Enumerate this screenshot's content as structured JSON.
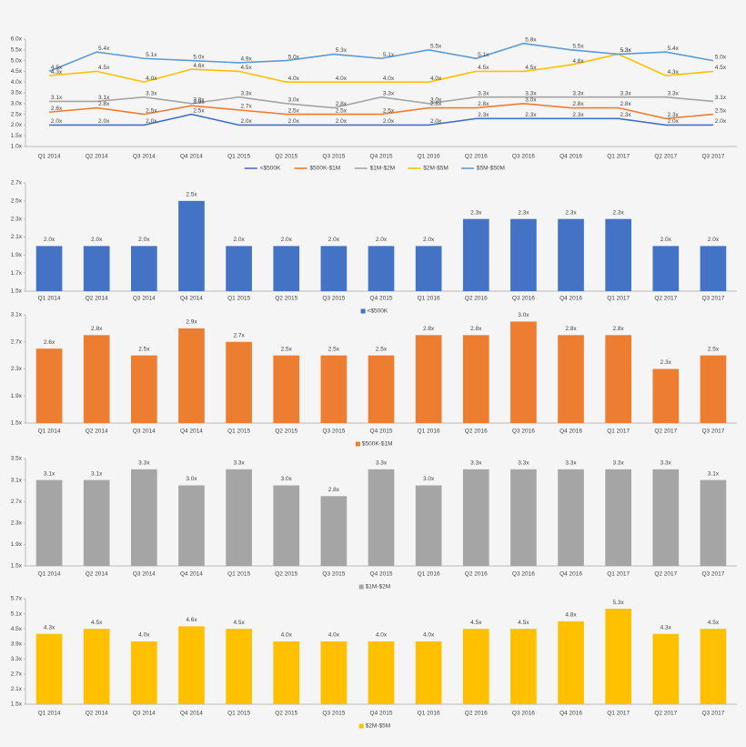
{
  "chart_data": [
    {
      "type": "line",
      "categories": [
        "Q1 2014",
        "Q2 2014",
        "Q3 2014",
        "Q4 2014",
        "Q1 2015",
        "Q2 2015",
        "Q3 2015",
        "Q4 2015",
        "Q1 2016",
        "Q2 2016",
        "Q3 2016",
        "Q4 2016",
        "Q1 2017",
        "Q2 2017",
        "Q3 2017"
      ],
      "ylim": [
        1.0,
        6.0
      ],
      "yticks": [
        {
          "value": 1.0,
          "label": "1.0x"
        },
        {
          "value": 1.5,
          "label": "1.5x"
        },
        {
          "value": 2.0,
          "label": "2.0x"
        },
        {
          "value": 2.5,
          "label": "2.5x"
        },
        {
          "value": 3.0,
          "label": "3.0x"
        },
        {
          "value": 3.5,
          "label": "3.5x"
        },
        {
          "value": 4.0,
          "label": "4.0x"
        },
        {
          "value": 4.5,
          "label": "4.5x"
        },
        {
          "value": 5.0,
          "label": "5.0x"
        },
        {
          "value": 5.5,
          "label": "5.5x"
        },
        {
          "value": 6.0,
          "label": "6.0x"
        }
      ],
      "grid": false,
      "legend": "bottom",
      "series": [
        {
          "name": "<$500K",
          "color": "#4472c4",
          "values": [
            2.0,
            2.0,
            2.0,
            2.5,
            2.0,
            2.0,
            2.0,
            2.0,
            2.0,
            2.3,
            2.3,
            2.3,
            2.3,
            2.0,
            2.0
          ],
          "value_labels": [
            "2.0x",
            "2.0x",
            "2.0x",
            "2.5x",
            "2.0x",
            "2.0x",
            "2.0x",
            "2.0x",
            "2.0x",
            "2.3x",
            "2.3x",
            "2.3x",
            "2.3x",
            "2.0x",
            "2.0x"
          ]
        },
        {
          "name": "$500K-$1M",
          "color": "#ed7d31",
          "values": [
            2.6,
            2.8,
            2.5,
            2.9,
            2.7,
            2.5,
            2.5,
            2.5,
            2.8,
            2.8,
            3.0,
            2.8,
            2.8,
            2.3,
            2.5
          ],
          "value_labels": [
            "2.6x",
            "2.8x",
            "2.5x",
            "2.9x",
            "2.7x",
            "2.5x",
            "2.5x",
            "2.5x",
            "2.8x",
            "2.8x",
            "3.0x",
            "2.8x",
            "2.8x",
            "2.3x",
            "2.5x"
          ]
        },
        {
          "name": "$1M-$2M",
          "color": "#a5a5a5",
          "values": [
            3.1,
            3.1,
            3.3,
            3.0,
            3.3,
            3.0,
            2.8,
            3.3,
            3.0,
            3.3,
            3.3,
            3.3,
            3.3,
            3.3,
            3.1
          ],
          "value_labels": [
            "3.1x",
            "3.1x",
            "3.3x",
            "3.0x",
            "3.3x",
            "3.0x",
            "2.8x",
            "3.3x",
            "3.0x",
            "3.3x",
            "3.3x",
            "3.3x",
            "3.3x",
            "3.3x",
            "3.1x"
          ]
        },
        {
          "name": "$2M-$5M",
          "color": "#ffc000",
          "values": [
            4.3,
            4.5,
            4.0,
            4.6,
            4.5,
            4.0,
            4.0,
            4.0,
            4.0,
            4.5,
            4.5,
            4.8,
            5.3,
            4.3,
            4.5
          ],
          "value_labels": [
            "4.3x",
            "4.5x",
            "4.0x",
            "4.6x",
            "4.5x",
            "4.0x",
            "4.0x",
            "4.0x",
            "4.0x",
            "4.5x",
            "4.5x",
            "4.8x",
            "5.3x",
            "4.3x",
            "4.5x"
          ]
        },
        {
          "name": "$5M-$50M",
          "color": "#5b9bd5",
          "values": [
            4.5,
            5.4,
            5.1,
            5.0,
            4.9,
            5.0,
            5.3,
            5.1,
            5.5,
            5.1,
            5.8,
            5.5,
            5.3,
            5.4,
            5.0
          ],
          "value_labels": [
            "4.5x",
            "5.4x",
            "5.1x",
            "5.0x",
            "4.9x",
            "5.0x",
            "5.3x",
            "5.1x",
            "5.5x",
            "5.1x",
            "5.8x",
            "5.5x",
            "5.3x",
            "5.4x",
            "5.0x"
          ]
        }
      ]
    },
    {
      "type": "bar",
      "categories": [
        "Q1 2014",
        "Q2 2014",
        "Q3 2014",
        "Q4 2014",
        "Q1 2015",
        "Q2 2015",
        "Q3 2015",
        "Q4 2015",
        "Q1 2016",
        "Q2 2016",
        "Q3 2016",
        "Q4 2016",
        "Q1 2017",
        "Q2 2017",
        "Q3 2017"
      ],
      "ylim": [
        1.5,
        2.7
      ],
      "yticks": [
        {
          "value": 1.5,
          "label": "1.5x"
        },
        {
          "value": 1.7,
          "label": "1.7x"
        },
        {
          "value": 1.9,
          "label": "1.9x"
        },
        {
          "value": 2.1,
          "label": "2.1x"
        },
        {
          "value": 2.3,
          "label": "2.3x"
        },
        {
          "value": 2.5,
          "label": "2.5x"
        },
        {
          "value": 2.7,
          "label": "2.7x"
        }
      ],
      "grid": false,
      "legend": "bottom",
      "series": [
        {
          "name": "<$500K",
          "color": "#4472c4",
          "values": [
            2.0,
            2.0,
            2.0,
            2.5,
            2.0,
            2.0,
            2.0,
            2.0,
            2.0,
            2.3,
            2.3,
            2.3,
            2.3,
            2.0,
            2.0
          ],
          "value_labels": [
            "2.0x",
            "2.0x",
            "2.0x",
            "2.5x",
            "2.0x",
            "2.0x",
            "2.0x",
            "2.0x",
            "2.0x",
            "2.3x",
            "2.3x",
            "2.3x",
            "2.3x",
            "2.0x",
            "2.0x"
          ]
        }
      ]
    },
    {
      "type": "bar",
      "categories": [
        "Q1 2014",
        "Q2 2014",
        "Q3 2014",
        "Q4 2014",
        "Q1 2015",
        "Q2 2015",
        "Q3 2015",
        "Q4 2015",
        "Q1 2016",
        "Q2 2016",
        "Q3 2016",
        "Q4 2016",
        "Q1 2017",
        "Q2 2017",
        "Q3 2017"
      ],
      "ylim": [
        1.5,
        3.1
      ],
      "yticks": [
        {
          "value": 1.5,
          "label": "1.5x"
        },
        {
          "value": 1.9,
          "label": "1.9x"
        },
        {
          "value": 2.3,
          "label": "2.3x"
        },
        {
          "value": 2.7,
          "label": "2.7x"
        },
        {
          "value": 3.1,
          "label": "3.1x"
        }
      ],
      "grid": false,
      "legend": "bottom",
      "series": [
        {
          "name": "$500K-$1M",
          "color": "#ed7d31",
          "values": [
            2.6,
            2.8,
            2.5,
            2.9,
            2.7,
            2.5,
            2.5,
            2.5,
            2.8,
            2.8,
            3.0,
            2.8,
            2.8,
            2.3,
            2.5
          ],
          "value_labels": [
            "2.6x",
            "2.8x",
            "2.5x",
            "2.9x",
            "2.7x",
            "2.5x",
            "2.5x",
            "2.5x",
            "2.8x",
            "2.8x",
            "3.0x",
            "2.8x",
            "2.8x",
            "2.3x",
            "2.5x"
          ]
        }
      ]
    },
    {
      "type": "bar",
      "categories": [
        "Q1 2014",
        "Q2 2014",
        "Q3 2014",
        "Q4 2014",
        "Q1 2015",
        "Q2 2015",
        "Q3 2015",
        "Q4 2015",
        "Q1 2016",
        "Q2 2016",
        "Q3 2016",
        "Q4 2016",
        "Q1 2017",
        "Q2 2017",
        "Q3 2017"
      ],
      "ylim": [
        1.5,
        3.5
      ],
      "yticks": [
        {
          "value": 1.5,
          "label": "1.5x"
        },
        {
          "value": 1.9,
          "label": "1.9x"
        },
        {
          "value": 2.3,
          "label": "2.3x"
        },
        {
          "value": 2.7,
          "label": "2.7x"
        },
        {
          "value": 3.1,
          "label": "3.1x"
        },
        {
          "value": 3.5,
          "label": "3.5x"
        }
      ],
      "grid": false,
      "legend": "bottom",
      "series": [
        {
          "name": "$1M-$2M",
          "color": "#a5a5a5",
          "values": [
            3.1,
            3.1,
            3.3,
            3.0,
            3.3,
            3.0,
            2.8,
            3.3,
            3.0,
            3.3,
            3.3,
            3.3,
            3.3,
            3.3,
            3.1
          ],
          "value_labels": [
            "3.1x",
            "3.1x",
            "3.3x",
            "3.0x",
            "3.3x",
            "3.0x",
            "2.8x",
            "3.3x",
            "3.0x",
            "3.3x",
            "3.3x",
            "3.3x",
            "3.3x",
            "3.3x",
            "3.1x"
          ]
        }
      ]
    },
    {
      "type": "bar",
      "categories": [
        "Q1 2014",
        "Q2 2014",
        "Q3 2014",
        "Q4 2014",
        "Q1 2015",
        "Q2 2015",
        "Q3 2015",
        "Q4 2015",
        "Q1 2016",
        "Q2 2016",
        "Q3 2016",
        "Q4 2016",
        "Q1 2017",
        "Q2 2017",
        "Q3 2017"
      ],
      "ylim": [
        1.5,
        5.7
      ],
      "yticks": [
        {
          "value": 1.5,
          "label": "1.5x"
        },
        {
          "value": 2.1,
          "label": "2.1x"
        },
        {
          "value": 2.7,
          "label": "2.7x"
        },
        {
          "value": 3.3,
          "label": "3.3x"
        },
        {
          "value": 3.9,
          "label": "3.9x"
        },
        {
          "value": 4.5,
          "label": "4.5x"
        },
        {
          "value": 5.1,
          "label": "5.1x"
        },
        {
          "value": 5.7,
          "label": "5.7x"
        }
      ],
      "grid": false,
      "legend": "bottom",
      "series": [
        {
          "name": "$2M-$5M",
          "color": "#ffc000",
          "values": [
            4.3,
            4.5,
            4.0,
            4.6,
            4.5,
            4.0,
            4.0,
            4.0,
            4.0,
            4.5,
            4.5,
            4.8,
            5.3,
            4.3,
            4.5
          ],
          "value_labels": [
            "4.3x",
            "4.5x",
            "4.0x",
            "4.6x",
            "4.5x",
            "4.0x",
            "4.0x",
            "4.0x",
            "4.0x",
            "4.5x",
            "4.5x",
            "4.8x",
            "5.3x",
            "4.3x",
            "4.5x"
          ]
        }
      ]
    }
  ]
}
